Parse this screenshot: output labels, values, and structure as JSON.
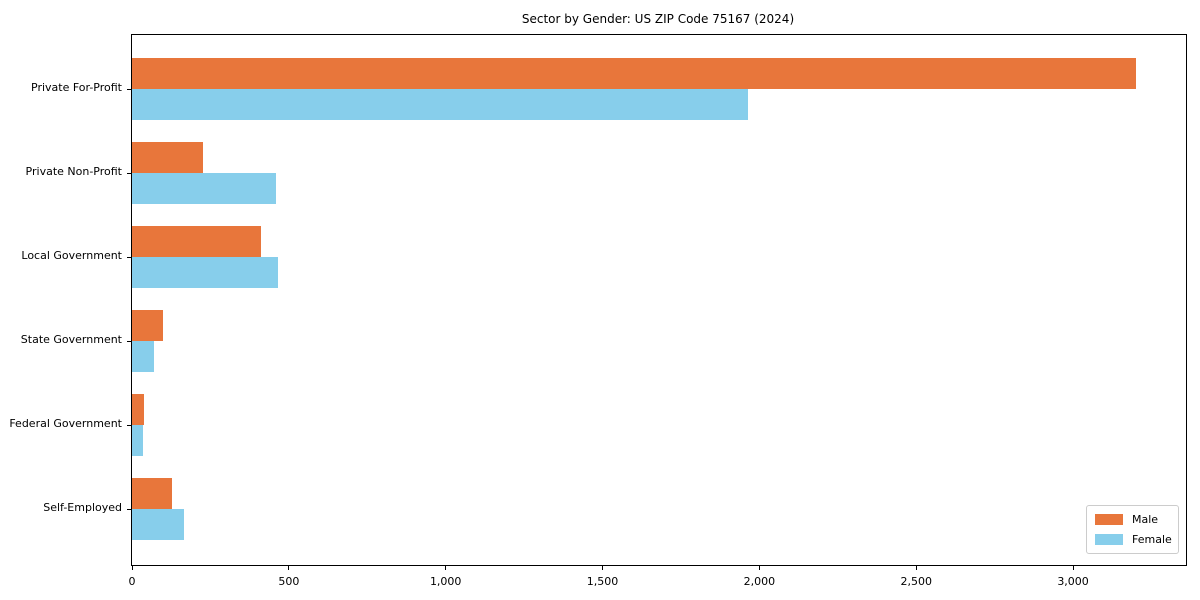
{
  "title": "Sector by Gender: US ZIP Code 75167 (2024)",
  "colors": {
    "male": "#E8763B",
    "female": "#87CEEB",
    "axis": "#000000",
    "legend_border": "#cccccc",
    "background": "#ffffff"
  },
  "chart_data": {
    "type": "bar",
    "orientation": "horizontal",
    "title": "Sector by Gender: US ZIP Code 75167 (2024)",
    "categories": [
      "Private For-Profit",
      "Private Non-Profit",
      "Local Government",
      "State Government",
      "Federal Government",
      "Self-Employed"
    ],
    "series": [
      {
        "name": "Male",
        "color": "#E8763B",
        "values": [
          3200,
          225,
          410,
          100,
          38,
          128
        ]
      },
      {
        "name": "Female",
        "color": "#87CEEB",
        "values": [
          1965,
          460,
          465,
          70,
          35,
          167
        ]
      }
    ],
    "xlabel": "",
    "ylabel": "",
    "xlim": [
      0,
      3360
    ],
    "xticks": [
      0,
      500,
      1000,
      1500,
      2000,
      2500,
      3000
    ],
    "xtick_labels": [
      "0",
      "500",
      "1,000",
      "1,500",
      "2,000",
      "2,500",
      "3,000"
    ],
    "grid": false,
    "legend": {
      "position": "lower right",
      "entries": [
        "Male",
        "Female"
      ]
    }
  }
}
